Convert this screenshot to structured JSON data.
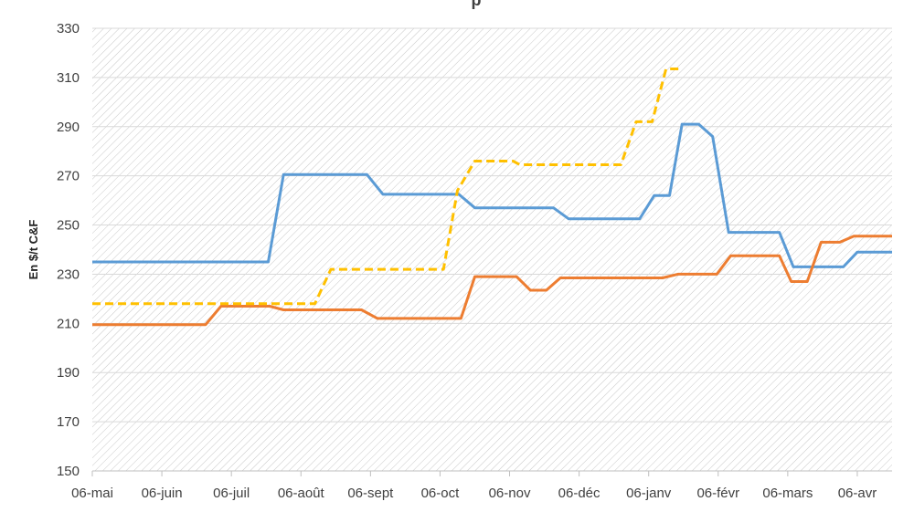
{
  "chart_data": {
    "type": "line",
    "title_fragment": "p",
    "ylabel": "En $/t C&F",
    "ylim": [
      150,
      330
    ],
    "yticks": [
      150,
      170,
      190,
      210,
      230,
      250,
      270,
      290,
      310,
      330
    ],
    "xlim": [
      0,
      11.5
    ],
    "categories": [
      "06-mai",
      "06-juin",
      "06-juil",
      "06-août",
      "06-sept",
      "06-oct",
      "06-nov",
      "06-déc",
      "06-janv",
      "06-févr",
      "06-mars",
      "06-avr"
    ],
    "grid": true,
    "colors": {
      "blue": "#5b9bd5",
      "orange": "#ed7d31",
      "gold": "#ffc000",
      "grid": "#d9d9d9",
      "hatch": "#c8c8c8",
      "axis": "#bfbfbf"
    },
    "series": [
      {
        "color": "#5b9bd5",
        "style": "solid",
        "points": [
          [
            0,
            235
          ],
          [
            2.53,
            235
          ],
          [
            2.75,
            270.5
          ],
          [
            3.95,
            270.5
          ],
          [
            4.18,
            262.5
          ],
          [
            5.27,
            262.5
          ],
          [
            5.5,
            257
          ],
          [
            6.63,
            257
          ],
          [
            6.85,
            252.5
          ],
          [
            7.87,
            252.5
          ],
          [
            8.08,
            262
          ],
          [
            8.3,
            262
          ],
          [
            8.48,
            291
          ],
          [
            8.72,
            291
          ],
          [
            8.92,
            286
          ],
          [
            9.15,
            247
          ],
          [
            9.88,
            247
          ],
          [
            10.08,
            233
          ],
          [
            10.8,
            233
          ],
          [
            11.0,
            239
          ],
          [
            11.5,
            239
          ]
        ]
      },
      {
        "color": "#ed7d31",
        "style": "solid",
        "points": [
          [
            0,
            209.5
          ],
          [
            1.63,
            209.5
          ],
          [
            1.85,
            217
          ],
          [
            2.55,
            217
          ],
          [
            2.75,
            215.5
          ],
          [
            3.87,
            215.5
          ],
          [
            4.1,
            212
          ],
          [
            5.3,
            212
          ],
          [
            5.5,
            229
          ],
          [
            6.1,
            229
          ],
          [
            6.3,
            223.5
          ],
          [
            6.53,
            223.5
          ],
          [
            6.73,
            228.5
          ],
          [
            8.2,
            228.5
          ],
          [
            8.42,
            230
          ],
          [
            8.98,
            230
          ],
          [
            9.18,
            237.5
          ],
          [
            9.88,
            237.5
          ],
          [
            10.05,
            227
          ],
          [
            10.28,
            227
          ],
          [
            10.48,
            243
          ],
          [
            10.75,
            243
          ],
          [
            10.95,
            245.5
          ],
          [
            11.5,
            245.5
          ]
        ]
      },
      {
        "color": "#ffc000",
        "style": "dashed",
        "points": [
          [
            0,
            218
          ],
          [
            3.2,
            218
          ],
          [
            3.43,
            232
          ],
          [
            5.05,
            232
          ],
          [
            5.25,
            264
          ],
          [
            5.5,
            276
          ],
          [
            6.05,
            276
          ],
          [
            6.15,
            274.5
          ],
          [
            7.6,
            274.5
          ],
          [
            7.82,
            292
          ],
          [
            8.05,
            292
          ],
          [
            8.25,
            313.5
          ],
          [
            8.47,
            313.5
          ]
        ]
      }
    ]
  }
}
